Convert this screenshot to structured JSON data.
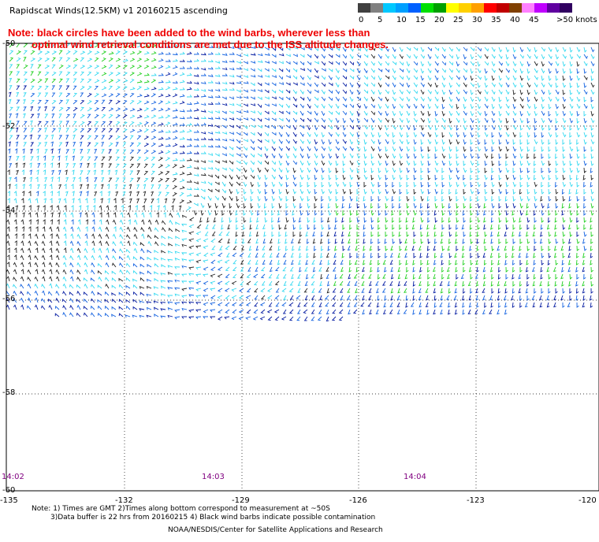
{
  "title": "Rapidscat Winds(12.5KM) v1 20160215 ascending",
  "note": {
    "line1": "Note: black circles have been added to the wind barbs, wherever less than",
    "line2": "optimal wind retrieval conditions are met due to the ISS altitude changes."
  },
  "legend": {
    "unit": ">50 knots",
    "ticks": [
      "0",
      "5",
      "10",
      "15",
      "20",
      "25",
      "30",
      "35",
      "40",
      "45"
    ],
    "colors": [
      "#404040",
      "#808080",
      "#00c8ff",
      "#00a0ff",
      "#0060ff",
      "#00e000",
      "#00a000",
      "#ffff00",
      "#ffd000",
      "#ffa000",
      "#ff0000",
      "#c00000",
      "#804000",
      "#ff80ff",
      "#c000ff",
      "#6000a0",
      "#300060"
    ]
  },
  "latitudes": [
    "-50",
    "-52",
    "-54",
    "-56",
    "-58",
    "-60"
  ],
  "longitudes": [
    "-135",
    "-132",
    "-129",
    "-126",
    "-123",
    "-120"
  ],
  "times": [
    "14:02",
    "14:03",
    "14:04"
  ],
  "footnote": {
    "line1": "Note: 1) Times are GMT 2)Times along bottom correspond to measurement at ~50S",
    "line2": "3)Data buffer is 22 hrs from 20160215 4) Black wind barbs indicate possible contamination"
  },
  "credit": "NOAA/NESDIS/Center for Satellite Applications and Research",
  "palette": {
    "calm": "#222222",
    "light": "#30d8f0",
    "moderate": "#1060e0",
    "strong": "#0018a0",
    "fresh": "#20d020",
    "gale": "#f0e020"
  }
}
